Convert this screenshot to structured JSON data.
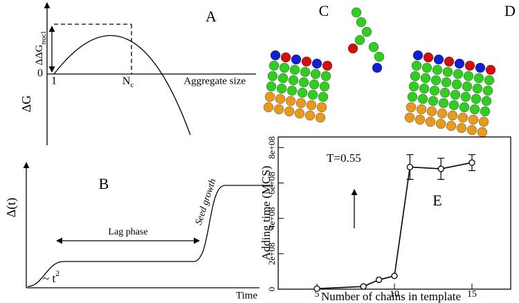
{
  "panels": {
    "A": {
      "letter": "A",
      "ylabel": "ΔG",
      "zero": "0",
      "one": "1",
      "nc": {
        "main": "N",
        "sub": "c"
      },
      "barrier": {
        "main": "ΔΔG",
        "sub": "nucl"
      },
      "xlabel": "Aggregate size"
    },
    "B": {
      "letter": "B",
      "ylabel": "Δ(t)",
      "lag": "Lag phase",
      "seed": "Seed growth",
      "early": {
        "main": "~ t",
        "sup": "2"
      },
      "xlabel": "Time"
    },
    "C": {
      "letter": "C"
    },
    "D": {
      "letter": "D"
    }
  },
  "chart_data": {
    "type": "line",
    "letter": "E",
    "annotation": "T=0.55",
    "xlabel": "Number of chains in template",
    "ylabel": "Adding time (MCS)",
    "x": [
      5,
      8,
      9,
      10,
      11,
      13,
      15
    ],
    "series": [
      {
        "color": "#000000",
        "values": [
          3000000,
          15000000,
          53000000,
          75000000,
          690000000,
          680000000,
          715000000
        ],
        "errors": [
          0,
          0,
          0,
          0,
          70000000,
          60000000,
          45000000
        ]
      }
    ],
    "xlim": [
      2.5,
      17.5
    ],
    "ylim": [
      0,
      860000000
    ],
    "xticks": [
      5,
      10,
      15
    ],
    "yticks": [
      0,
      {
        "value": 200000000,
        "label": "2e+08"
      },
      {
        "value": 400000000,
        "label": "4e+08"
      },
      {
        "value": 600000000,
        "label": "6e+08"
      },
      {
        "value": 800000000,
        "label": "8e+08"
      }
    ]
  }
}
